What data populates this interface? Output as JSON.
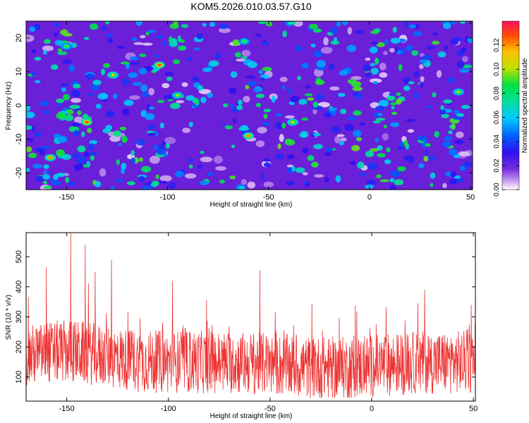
{
  "chart_data": [
    {
      "type": "heatmap",
      "title": "KOM5.2026.010.03.57.G10",
      "xlabel": "Height of straight line (km)",
      "ylabel": "Frequency (Hz)",
      "xlim": [
        -170,
        51
      ],
      "ylim": [
        -25,
        25
      ],
      "xticks": [
        -150,
        -100,
        -50,
        0,
        50
      ],
      "yticks": [
        -20,
        -10,
        0,
        10,
        20
      ],
      "colorbar": {
        "label": "Normalized spectral amplitude",
        "range": [
          0,
          0.14
        ],
        "ticks": [
          0,
          0.02,
          0.04,
          0.06,
          0.08,
          0.1,
          0.12
        ],
        "tick_labels": [
          "0.00",
          "0.02",
          "0.04",
          "0.06",
          "0.08",
          "0.10",
          "0.12"
        ]
      },
      "peaks": [
        {
          "x": -140,
          "y": -5,
          "value": 0.13
        },
        {
          "x": -104,
          "y": 12,
          "value": 0.13
        },
        {
          "x": -60,
          "y": -9,
          "value": 0.12
        },
        {
          "x": -38,
          "y": -5,
          "value": 0.11
        },
        {
          "x": -158,
          "y": -15.5,
          "value": 0.12
        },
        {
          "x": -127,
          "y": 9,
          "value": 0.11
        },
        {
          "x": -95,
          "y": 3,
          "value": 0.1
        },
        {
          "x": 44,
          "y": 4,
          "value": 0.1
        },
        {
          "x": -150,
          "y": 17.5,
          "value": 0.09
        },
        {
          "x": -62,
          "y": 19,
          "value": 0.09
        }
      ]
    },
    {
      "type": "line",
      "xlabel": "Height of straight line (km)",
      "ylabel": "SNR (10 * v/v)",
      "xlim": [
        -170,
        51
      ],
      "ylim": [
        20,
        580
      ],
      "xticks": [
        -150,
        -100,
        -50,
        0,
        50
      ],
      "yticks": [
        100,
        200,
        300,
        400,
        500
      ],
      "color": "#ee3333",
      "peaks": [
        {
          "x": -148,
          "y": 580
        },
        {
          "x": -141,
          "y": 540
        },
        {
          "x": -160,
          "y": 465
        },
        {
          "x": -128,
          "y": 490
        },
        {
          "x": -136,
          "y": 450
        },
        {
          "x": -98,
          "y": 420
        },
        {
          "x": -55,
          "y": 455
        },
        {
          "x": 26,
          "y": 390
        },
        {
          "x": 49,
          "y": 340
        }
      ]
    }
  ]
}
